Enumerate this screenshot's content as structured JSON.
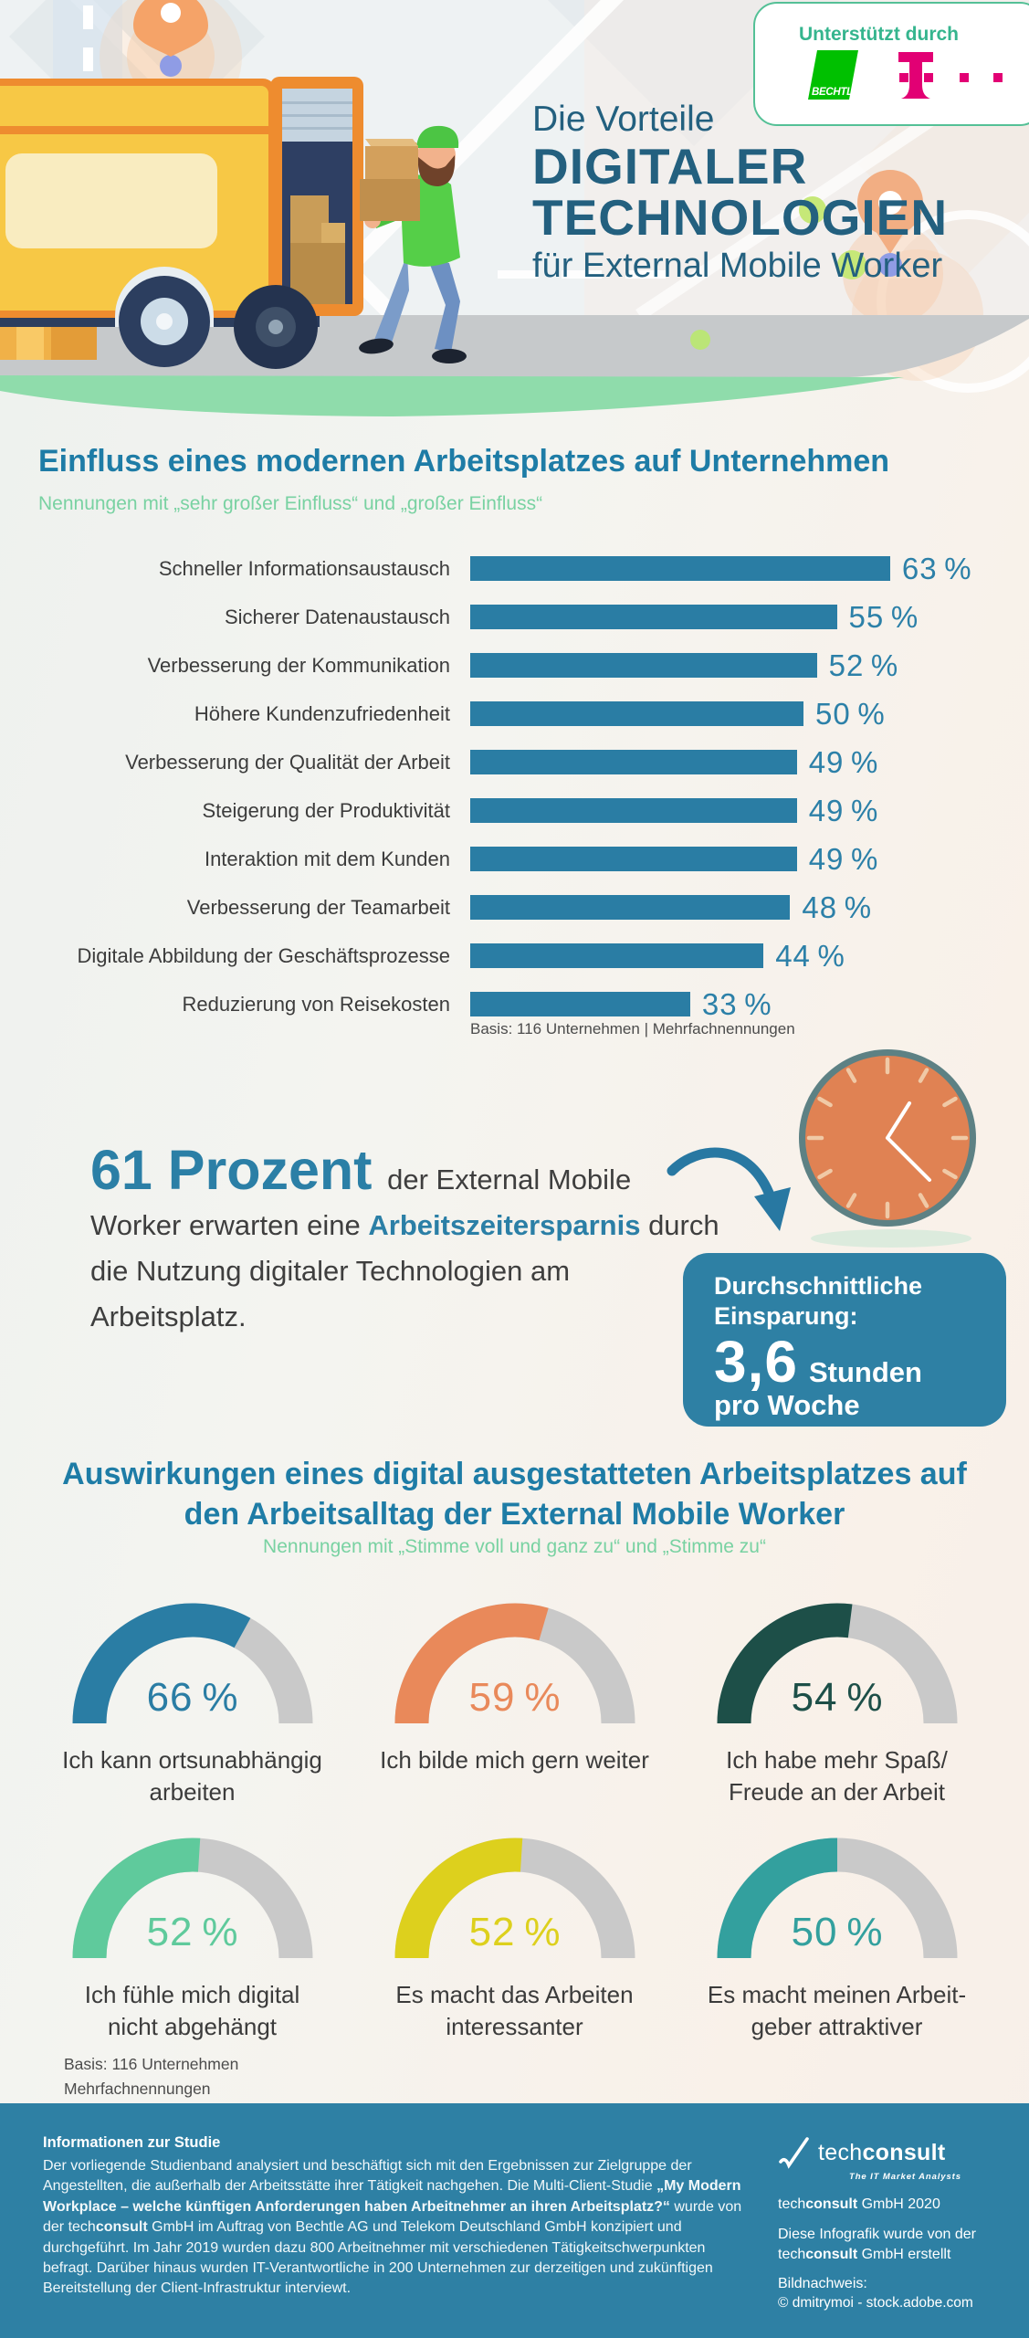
{
  "header": {
    "supported_by": "Unterstützt durch",
    "logos": {
      "bechtle": "BECHTLE",
      "telekom": "Telekom"
    },
    "title_line1": "Die Vorteile",
    "title_line2": "DIGITALER",
    "title_line3": "TECHNOLOGIEN",
    "title_line4": "für External Mobile Worker"
  },
  "chart_data": [
    {
      "type": "bar",
      "title": "Einfluss eines modernen Arbeitsplatzes auf Unternehmen",
      "subtitle": "Nennungen mit „sehr großer Einfluss“ und „großer Einfluss“",
      "unit": "%",
      "xlim": [
        0,
        70
      ],
      "bar_color": "#2a7da4",
      "categories": [
        "Schneller Informationsaustausch",
        "Sicherer Datenaustausch",
        "Verbesserung der Kommunikation",
        "Höhere Kundenzufriedenheit",
        "Verbesserung der Qualität der Arbeit",
        "Steigerung der Produktivität",
        "Interaktion mit dem Kunden",
        "Verbesserung der Teamarbeit",
        "Digitale Abbildung der Geschäftsprozesse",
        "Reduzierung von Reisekosten"
      ],
      "values": [
        63,
        55,
        52,
        50,
        49,
        49,
        49,
        48,
        44,
        33
      ],
      "note": "Basis: 116 Unternehmen | Mehrfachnennungen"
    },
    {
      "type": "gauge",
      "title": "Auswirkungen eines digital ausgestatteten Arbeitsplatzes auf den Arbeitsalltag der External Mobile Worker",
      "subtitle": "Nennungen mit „Stimme voll und ganz zu“ und „Stimme zu“",
      "unit": "%",
      "range": [
        0,
        100
      ],
      "track_color": "#c9c9c9",
      "items": [
        {
          "label": "Ich kann ortsunabhängig\narbeiten",
          "value": 66,
          "color": "#2a7da4"
        },
        {
          "label": "Ich bilde mich gern weiter",
          "value": 59,
          "color": "#e9895a"
        },
        {
          "label": "Ich habe mehr Spaß/\nFreude an der Arbeit",
          "value": 54,
          "color": "#1d4f48"
        },
        {
          "label": "Ich fühle mich digital\nnicht abgehängt",
          "value": 52,
          "color": "#5fca9c"
        },
        {
          "label": "Es macht das Arbeiten\ninteressanter",
          "value": 52,
          "color": "#ddd01d"
        },
        {
          "label": "Es macht meinen Arbeit-\ngeber attraktiver",
          "value": 50,
          "color": "#33a09e"
        }
      ],
      "note": "Basis: 116 Unternehmen\nMehrfachnennungen"
    }
  ],
  "section2": {
    "title_line1": "Auswirkungen eines digital ausgestatteten Arbeitsplatzes auf",
    "title_line2": "den Arbeitsalltag der External Mobile Worker"
  },
  "highlight": {
    "segments": [
      {
        "t": "61 Prozent",
        "s": "num"
      },
      {
        "t": " der External Mobile Worker erwarten eine "
      },
      {
        "t": "Arbeitszeitersparnis",
        "s": "hl"
      },
      {
        "t": " durch die Nutzung digitaler Technologien am Arbeitsplatz."
      }
    ],
    "box": {
      "line1": "Durchschnittliche",
      "line2": "Einsparung:",
      "value": "3,6",
      "unit": "Stunden",
      "line3": "pro Woche"
    }
  },
  "footer": {
    "info_title": "Informationen zur Studie",
    "paragraph": [
      {
        "t": "Der vorliegende Studienband analysiert und beschäftigt sich mit den Ergebnissen zur Zielgruppe der Angestellten, die außerhalb der Arbeitsstätte ihrer Tätigkeit nachgehen. Die Multi-Client-Studie "
      },
      {
        "t": "„My Modern Workplace – welche künftigen Anforderungen haben Arbeitnehmer an ihren Arbeitsplatz?“",
        "s": "b"
      },
      {
        "t": " wurde von der tech"
      },
      {
        "t": "consult",
        "s": "b"
      },
      {
        "t": " GmbH im Auftrag von Bechtle AG und Telekom Deutschland GmbH konzipiert und durchgeführt. Im Jahr 2019 wurden dazu 800 Arbeitnehmer mit verschiedenen Tätigkeitschwerpunkten befragt. Darüber hinaus wurden IT-Verantwortliche in 200 Unternehmen zur derzeitigen und zukünftigen Bereitstellung der Client-Infrastruktur interviewt."
      }
    ],
    "logo_segments": [
      {
        "t": "tech"
      },
      {
        "t": "consult",
        "s": "b"
      }
    ],
    "tagline": "The IT Market Analysts",
    "credit1": [
      {
        "t": "tech"
      },
      {
        "t": "consult",
        "s": "b"
      },
      {
        "t": " GmbH 2020"
      }
    ],
    "credit2": [
      {
        "t": "Diese Infografik wurde von der "
      },
      {
        "t": "tech"
      },
      {
        "t": "consult",
        "s": "b"
      },
      {
        "t": " GmbH erstellt"
      }
    ],
    "bildnachweis_label": "Bildnachweis:",
    "bildnachweis_value": "© dmitrymoi - stock.adobe.com"
  }
}
